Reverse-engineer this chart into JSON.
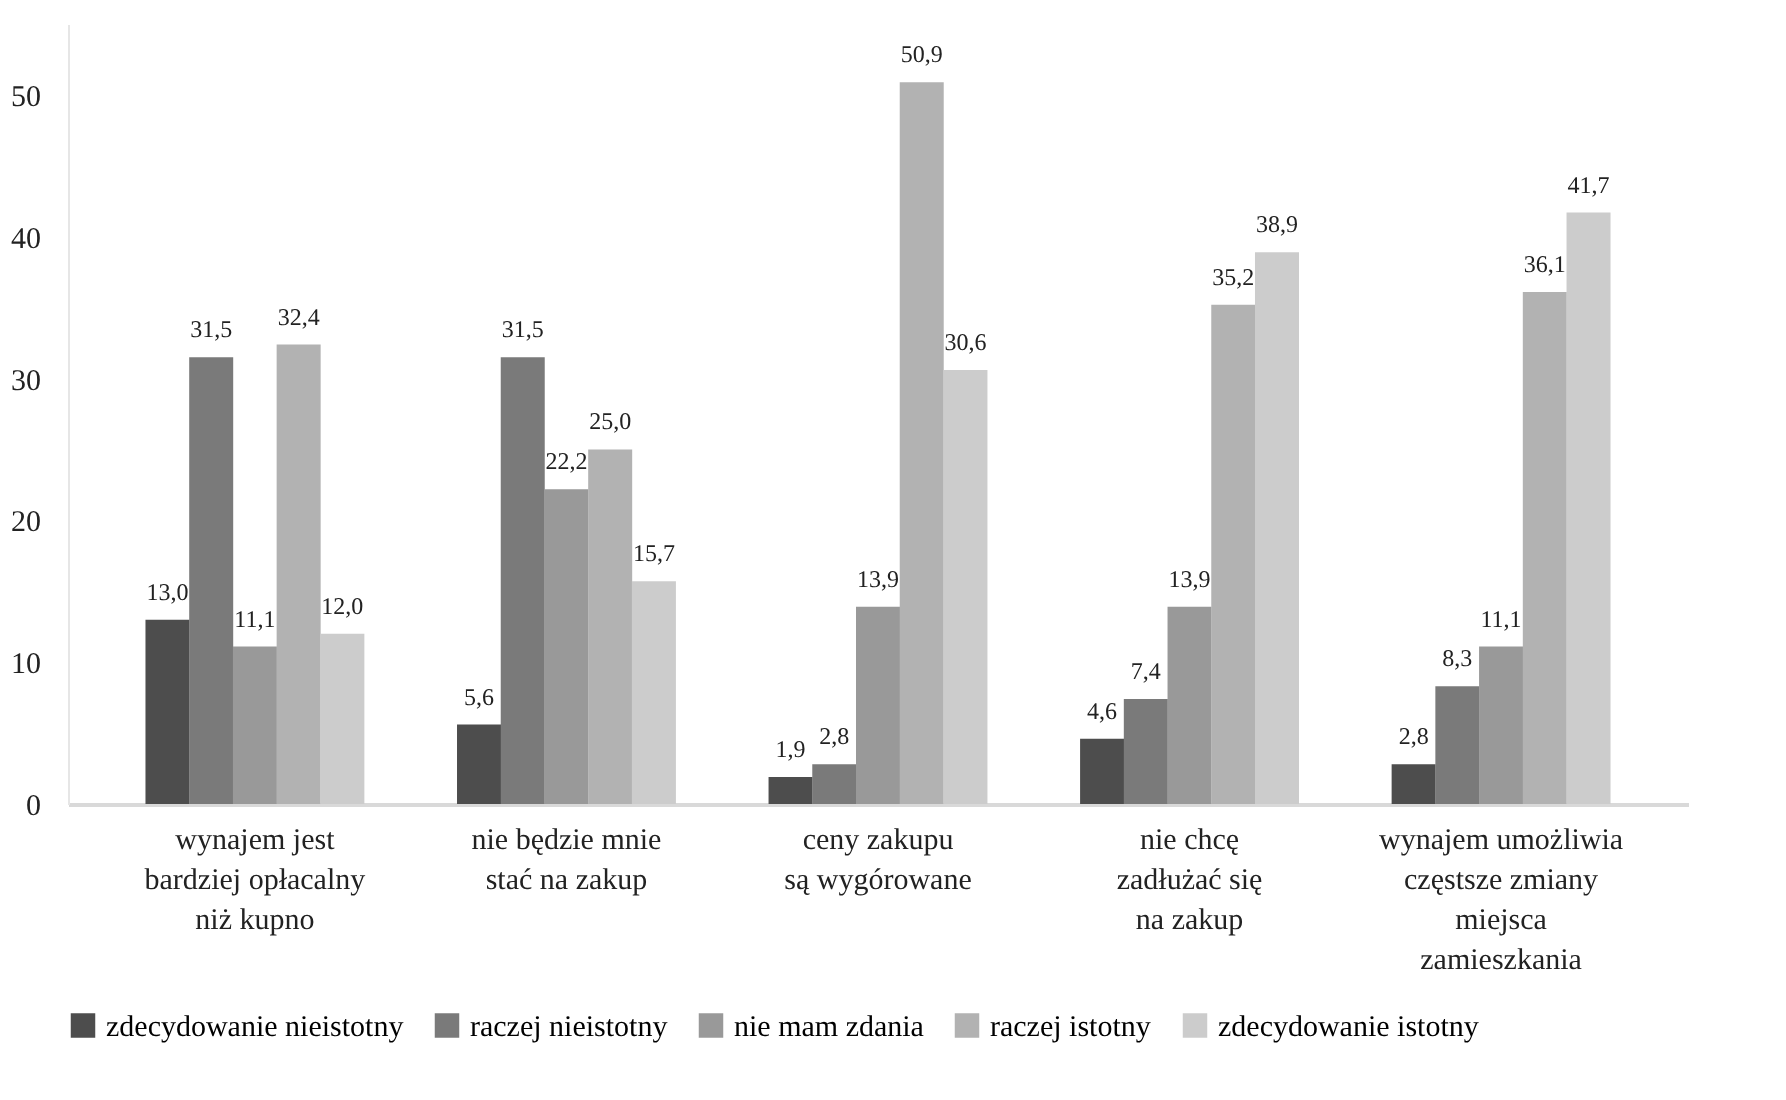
{
  "chart_data": {
    "type": "bar",
    "categories": [
      "wynajem jest\nbardziej opłacalny\nniż kupno",
      "nie będzie mnie\nstać na zakup",
      "ceny zakupu\nsą wygórowane",
      "nie chcę\nzadłużać się\nna zakup",
      "wynajem umożliwia\nczęstsze zmiany\nmiejsca\nzamieszkania"
    ],
    "series": [
      {
        "name": "zdecydowanie nieistotny",
        "color": "#4d4d4d",
        "values": [
          13.0,
          5.6,
          1.9,
          4.6,
          2.8
        ],
        "value_labels": [
          "13,0",
          "5,6",
          "1,9",
          "4,6",
          "2,8"
        ]
      },
      {
        "name": "raczej nieistotny",
        "color": "#7a7a7a",
        "values": [
          31.5,
          31.5,
          2.8,
          7.4,
          8.3
        ],
        "value_labels": [
          "31,5",
          "31,5",
          "2,8",
          "7,4",
          "8,3"
        ]
      },
      {
        "name": "nie mam zdania",
        "color": "#999999",
        "values": [
          11.1,
          22.2,
          13.9,
          13.9,
          11.1
        ],
        "value_labels": [
          "11,1",
          "22,2",
          "13,9",
          "13,9",
          "11,1"
        ]
      },
      {
        "name": "raczej istotny",
        "color": "#b2b2b2",
        "values": [
          32.4,
          25.0,
          50.9,
          35.2,
          36.1
        ],
        "value_labels": [
          "32,4",
          "25,0",
          "50,9",
          "35,2",
          "36,1"
        ]
      },
      {
        "name": "zdecydowanie istotny",
        "color": "#cccccc",
        "values": [
          12.0,
          15.7,
          30.6,
          38.9,
          41.7
        ],
        "value_labels": [
          "12,0",
          "15,7",
          "30,6",
          "38,9",
          "41,7"
        ]
      }
    ],
    "ylim": [
      0,
      55
    ],
    "yticks": [
      0,
      10,
      20,
      30,
      40,
      50
    ],
    "grid": false,
    "legend": "bottom"
  }
}
